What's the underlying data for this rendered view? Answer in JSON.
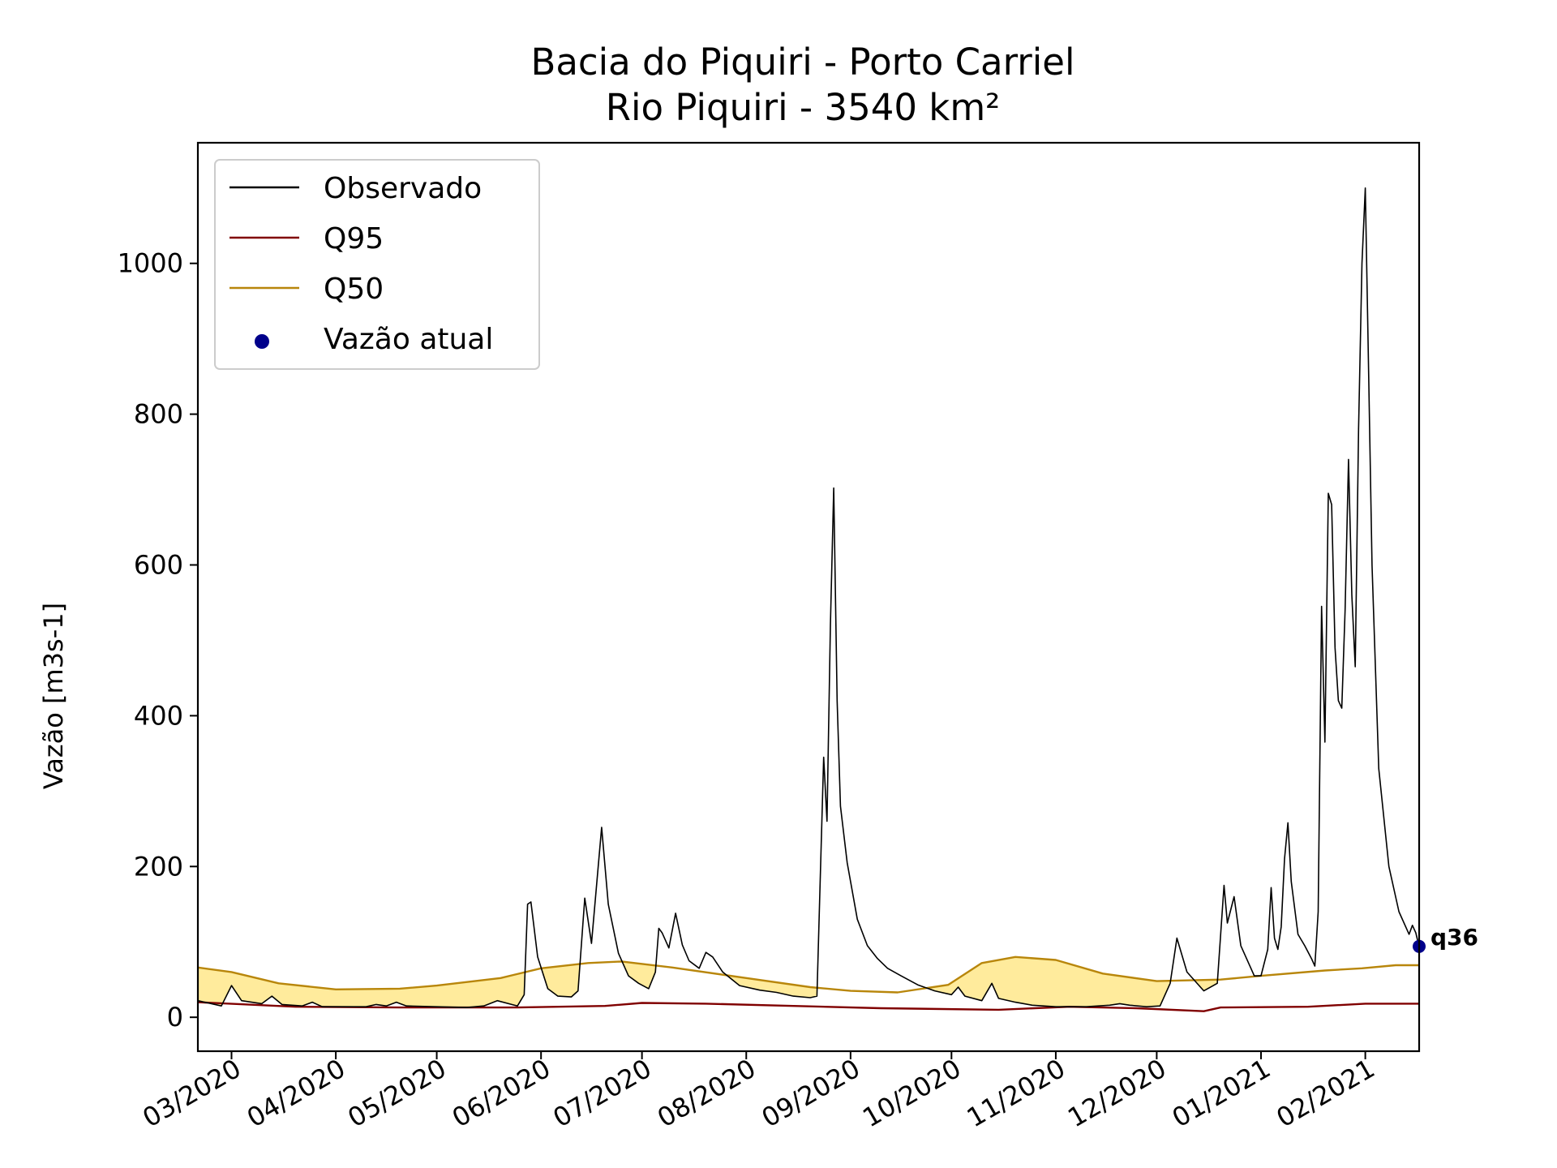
{
  "chart_data": {
    "type": "line",
    "title_line1": "Bacia do Piquiri - Porto Carriel",
    "title_line2": "Rio Piquiri - 3540 km²",
    "ylabel": "Vazão [m3s-1]",
    "xlabel": "",
    "xlim": [
      "2020-02-20",
      "2021-02-17"
    ],
    "ylim": [
      -45,
      1160
    ],
    "yticks": [
      0,
      200,
      400,
      600,
      800,
      1000
    ],
    "xticks": [
      {
        "date": "2020-03-01",
        "label": "03/2020"
      },
      {
        "date": "2020-04-01",
        "label": "04/2020"
      },
      {
        "date": "2020-05-01",
        "label": "05/2020"
      },
      {
        "date": "2020-06-01",
        "label": "06/2020"
      },
      {
        "date": "2020-07-01",
        "label": "07/2020"
      },
      {
        "date": "2020-08-01",
        "label": "08/2020"
      },
      {
        "date": "2020-09-01",
        "label": "09/2020"
      },
      {
        "date": "2020-10-01",
        "label": "10/2020"
      },
      {
        "date": "2020-11-01",
        "label": "11/2020"
      },
      {
        "date": "2020-12-01",
        "label": "12/2020"
      },
      {
        "date": "2021-01-01",
        "label": "01/2021"
      },
      {
        "date": "2021-02-01",
        "label": "02/2021"
      }
    ],
    "legend": {
      "location": "upper-left",
      "entries": [
        {
          "label": "Observado",
          "kind": "line",
          "color": "#000000"
        },
        {
          "label": "Q95",
          "kind": "line",
          "color": "#800000"
        },
        {
          "label": "Q50",
          "kind": "line",
          "color": "#b8860b"
        },
        {
          "label": "Vazão atual",
          "kind": "marker",
          "color": "#00008b"
        }
      ]
    },
    "fill_color": "#ffeb9c",
    "series": [
      {
        "name": "Observado",
        "color": "#000000",
        "points": [
          [
            "2020-02-20",
            22
          ],
          [
            "2020-02-27",
            15
          ],
          [
            "2020-03-01",
            42
          ],
          [
            "2020-03-04",
            22
          ],
          [
            "2020-03-10",
            18
          ],
          [
            "2020-03-13",
            28
          ],
          [
            "2020-03-16",
            17
          ],
          [
            "2020-03-22",
            15
          ],
          [
            "2020-03-25",
            20
          ],
          [
            "2020-03-28",
            14
          ],
          [
            "2020-04-05",
            14
          ],
          [
            "2020-04-10",
            14
          ],
          [
            "2020-04-13",
            17
          ],
          [
            "2020-04-16",
            15
          ],
          [
            "2020-04-19",
            20
          ],
          [
            "2020-04-22",
            15
          ],
          [
            "2020-05-01",
            14
          ],
          [
            "2020-05-10",
            13
          ],
          [
            "2020-05-15",
            15
          ],
          [
            "2020-05-19",
            22
          ],
          [
            "2020-05-25",
            15
          ],
          [
            "2020-05-27",
            30
          ],
          [
            "2020-05-28",
            150
          ],
          [
            "2020-05-29",
            153
          ],
          [
            "2020-05-31",
            80
          ],
          [
            "2020-06-03",
            38
          ],
          [
            "2020-06-06",
            28
          ],
          [
            "2020-06-10",
            27
          ],
          [
            "2020-06-12",
            35
          ],
          [
            "2020-06-14",
            158
          ],
          [
            "2020-06-16",
            98
          ],
          [
            "2020-06-19",
            252
          ],
          [
            "2020-06-21",
            150
          ],
          [
            "2020-06-24",
            85
          ],
          [
            "2020-06-27",
            55
          ],
          [
            "2020-06-30",
            45
          ],
          [
            "2020-07-03",
            38
          ],
          [
            "2020-07-05",
            60
          ],
          [
            "2020-07-06",
            118
          ],
          [
            "2020-07-07",
            112
          ],
          [
            "2020-07-09",
            92
          ],
          [
            "2020-07-11",
            138
          ],
          [
            "2020-07-13",
            96
          ],
          [
            "2020-07-15",
            75
          ],
          [
            "2020-07-18",
            65
          ],
          [
            "2020-07-20",
            86
          ],
          [
            "2020-07-22",
            80
          ],
          [
            "2020-07-25",
            60
          ],
          [
            "2020-07-30",
            42
          ],
          [
            "2020-08-05",
            36
          ],
          [
            "2020-08-10",
            33
          ],
          [
            "2020-08-15",
            28
          ],
          [
            "2020-08-20",
            26
          ],
          [
            "2020-08-22",
            28
          ],
          [
            "2020-08-24",
            345
          ],
          [
            "2020-08-25",
            260
          ],
          [
            "2020-08-26",
            520
          ],
          [
            "2020-08-27",
            702
          ],
          [
            "2020-08-28",
            420
          ],
          [
            "2020-08-29",
            280
          ],
          [
            "2020-08-31",
            205
          ],
          [
            "2020-09-03",
            130
          ],
          [
            "2020-09-06",
            95
          ],
          [
            "2020-09-09",
            78
          ],
          [
            "2020-09-12",
            65
          ],
          [
            "2020-09-16",
            55
          ],
          [
            "2020-09-21",
            43
          ],
          [
            "2020-09-26",
            35
          ],
          [
            "2020-10-01",
            30
          ],
          [
            "2020-10-03",
            40
          ],
          [
            "2020-10-05",
            28
          ],
          [
            "2020-10-10",
            22
          ],
          [
            "2020-10-13",
            45
          ],
          [
            "2020-10-15",
            25
          ],
          [
            "2020-10-20",
            20
          ],
          [
            "2020-10-25",
            16
          ],
          [
            "2020-11-01",
            14
          ],
          [
            "2020-11-10",
            14
          ],
          [
            "2020-11-17",
            16
          ],
          [
            "2020-11-20",
            18
          ],
          [
            "2020-11-23",
            16
          ],
          [
            "2020-11-28",
            14
          ],
          [
            "2020-12-02",
            15
          ],
          [
            "2020-12-05",
            45
          ],
          [
            "2020-12-07",
            105
          ],
          [
            "2020-12-10",
            60
          ],
          [
            "2020-12-15",
            35
          ],
          [
            "2020-12-19",
            45
          ],
          [
            "2020-12-21",
            175
          ],
          [
            "2020-12-22",
            125
          ],
          [
            "2020-12-24",
            160
          ],
          [
            "2020-12-26",
            95
          ],
          [
            "2020-12-30",
            55
          ],
          [
            "2021-01-01",
            55
          ],
          [
            "2021-01-03",
            90
          ],
          [
            "2021-01-04",
            172
          ],
          [
            "2021-01-05",
            105
          ],
          [
            "2021-01-06",
            90
          ],
          [
            "2021-01-07",
            120
          ],
          [
            "2021-01-08",
            210
          ],
          [
            "2021-01-09",
            258
          ],
          [
            "2021-01-10",
            180
          ],
          [
            "2021-01-12",
            110
          ],
          [
            "2021-01-14",
            95
          ],
          [
            "2021-01-16",
            78
          ],
          [
            "2021-01-17",
            68
          ],
          [
            "2021-01-18",
            140
          ],
          [
            "2021-01-19",
            545
          ],
          [
            "2021-01-20",
            365
          ],
          [
            "2021-01-21",
            695
          ],
          [
            "2021-01-22",
            680
          ],
          [
            "2021-01-23",
            490
          ],
          [
            "2021-01-24",
            420
          ],
          [
            "2021-01-25",
            410
          ],
          [
            "2021-01-26",
            540
          ],
          [
            "2021-01-27",
            740
          ],
          [
            "2021-01-28",
            560
          ],
          [
            "2021-01-29",
            465
          ],
          [
            "2021-01-30",
            780
          ],
          [
            "2021-01-31",
            1000
          ],
          [
            "2021-02-01",
            1100
          ],
          [
            "2021-02-02",
            850
          ],
          [
            "2021-02-03",
            600
          ],
          [
            "2021-02-05",
            330
          ],
          [
            "2021-02-08",
            200
          ],
          [
            "2021-02-11",
            140
          ],
          [
            "2021-02-14",
            110
          ],
          [
            "2021-02-15",
            122
          ],
          [
            "2021-02-16",
            112
          ],
          [
            "2021-02-17",
            93
          ]
        ]
      },
      {
        "name": "Q95",
        "color": "#800000",
        "points": [
          [
            "2020-02-20",
            20
          ],
          [
            "2020-03-20",
            14
          ],
          [
            "2020-04-20",
            13
          ],
          [
            "2020-05-25",
            13
          ],
          [
            "2020-06-20",
            15
          ],
          [
            "2020-07-01",
            19
          ],
          [
            "2020-07-20",
            18
          ],
          [
            "2020-08-15",
            15
          ],
          [
            "2020-09-10",
            12
          ],
          [
            "2020-10-15",
            10
          ],
          [
            "2020-11-05",
            14
          ],
          [
            "2020-11-25",
            12
          ],
          [
            "2020-12-15",
            8
          ],
          [
            "2020-12-20",
            13
          ],
          [
            "2021-01-15",
            14
          ],
          [
            "2021-02-01",
            18
          ],
          [
            "2021-02-17",
            18
          ]
        ]
      },
      {
        "name": "Q50",
        "color": "#b8860b",
        "points": [
          [
            "2020-02-20",
            66
          ],
          [
            "2020-03-01",
            60
          ],
          [
            "2020-03-15",
            45
          ],
          [
            "2020-04-01",
            37
          ],
          [
            "2020-04-20",
            38
          ],
          [
            "2020-05-01",
            42
          ],
          [
            "2020-05-20",
            52
          ],
          [
            "2020-06-01",
            65
          ],
          [
            "2020-06-15",
            72
          ],
          [
            "2020-06-25",
            74
          ],
          [
            "2020-07-10",
            66
          ],
          [
            "2020-08-01",
            52
          ],
          [
            "2020-08-20",
            40
          ],
          [
            "2020-09-01",
            35
          ],
          [
            "2020-09-15",
            33
          ],
          [
            "2020-09-30",
            43
          ],
          [
            "2020-10-10",
            72
          ],
          [
            "2020-10-20",
            80
          ],
          [
            "2020-11-01",
            76
          ],
          [
            "2020-11-15",
            58
          ],
          [
            "2020-12-01",
            48
          ],
          [
            "2020-12-20",
            50
          ],
          [
            "2021-01-01",
            55
          ],
          [
            "2021-01-20",
            62
          ],
          [
            "2021-01-31",
            65
          ],
          [
            "2021-02-10",
            69
          ],
          [
            "2021-02-17",
            69
          ]
        ]
      }
    ],
    "current": {
      "label": "Vazão atual",
      "date": "2021-02-17",
      "value": 94,
      "color": "#00008b",
      "annotation": "q36"
    }
  }
}
